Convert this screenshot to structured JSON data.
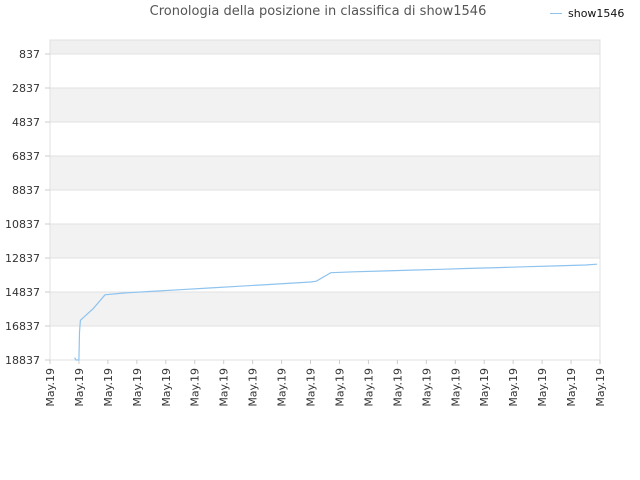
{
  "chart_data": {
    "type": "line",
    "title": "Cronologia della posizione in classifica di show1546",
    "xlabel": "",
    "ylabel": "",
    "y_inverted": true,
    "ylim": [
      837,
      18837
    ],
    "y_ticks": [
      "837",
      "2837",
      "4837",
      "6837",
      "8837",
      "10837",
      "12837",
      "14837",
      "16837",
      "18837"
    ],
    "x_ticks": [
      "May.19",
      "May.19",
      "May.19",
      "May.19",
      "May.19",
      "May.19",
      "May.19",
      "May.19",
      "May.19",
      "May.19",
      "May.19",
      "May.19",
      "May.19",
      "May.19",
      "May.19",
      "May.19",
      "May.19",
      "May.19",
      "May.19",
      "May.19"
    ],
    "legend_position": "top-right",
    "grid": true,
    "series": [
      {
        "name": "show1546",
        "color": "#8ec3ee",
        "x": [
          0.85,
          0.9,
          1.0,
          1.02,
          1.05,
          1.5,
          1.9,
          2.5,
          3.5,
          4.5,
          5.5,
          6.5,
          7.5,
          8.5,
          9.0,
          9.2,
          9.7,
          10.5,
          11.5,
          12.5,
          13.5,
          14.5,
          15.5,
          16.5,
          17.5,
          18.5,
          18.9
        ],
        "y": [
          18700,
          18837,
          18837,
          17200,
          16500,
          15800,
          15000,
          14900,
          14800,
          14700,
          14600,
          14500,
          14400,
          14300,
          14250,
          14200,
          13700,
          13650,
          13600,
          13550,
          13500,
          13450,
          13400,
          13350,
          13300,
          13250,
          13200
        ]
      }
    ]
  }
}
